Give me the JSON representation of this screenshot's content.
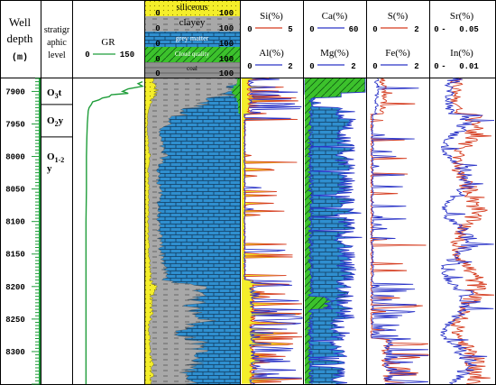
{
  "chart_data": {
    "type": "well-log",
    "depth_axis": {
      "title_line1": "Well",
      "title_line2": "depth",
      "unit": "(m)",
      "range": [
        7880,
        8350
      ],
      "ticks": [
        7900,
        7950,
        8000,
        8050,
        8100,
        8150,
        8200,
        8250,
        8300
      ]
    },
    "strat": {
      "header_lines": [
        "stratigr",
        "aphic",
        "level"
      ],
      "units": [
        {
          "label": "O3t",
          "main": "O",
          "sub": "3",
          "suffix": "t",
          "top": 7885,
          "bottom": 7920
        },
        {
          "label": "O2y",
          "main": "O",
          "sub": "2",
          "suffix": "y",
          "top": 7920,
          "bottom": 7970
        },
        {
          "label": "O1-2y",
          "main": "O",
          "sub": "1-2",
          "suffix": "y",
          "top": 7970,
          "bottom": 8350
        }
      ]
    },
    "gr": {
      "name": "GR",
      "range_min": "0",
      "range_max": "150",
      "min": 0,
      "max": 150,
      "color": "#1f9d3a",
      "points": [
        [
          7885,
          150
        ],
        [
          7888,
          140
        ],
        [
          7892,
          150
        ],
        [
          7896,
          118
        ],
        [
          7900,
          105
        ],
        [
          7903,
          118
        ],
        [
          7905,
          80
        ],
        [
          7908,
          75
        ],
        [
          7910,
          60
        ],
        [
          7913,
          52
        ],
        [
          7916,
          38
        ],
        [
          7920,
          35
        ],
        [
          7925,
          30
        ],
        [
          7930,
          28
        ],
        [
          7940,
          27
        ],
        [
          7950,
          26
        ],
        [
          7970,
          25
        ],
        [
          8000,
          24
        ],
        [
          8050,
          24
        ],
        [
          8100,
          23
        ],
        [
          8150,
          23
        ],
        [
          8200,
          23
        ],
        [
          8250,
          23
        ],
        [
          8300,
          23
        ],
        [
          8350,
          23
        ]
      ]
    },
    "lithology": {
      "legend": [
        {
          "label": "siliceous",
          "min": "0",
          "max": "100",
          "color": "#f4ee2a"
        },
        {
          "label": "clayey",
          "min": "0",
          "max": "100",
          "color": "#a8a8a8"
        },
        {
          "label": "grey matter",
          "min": "0",
          "max": "100",
          "color": "#1e90d0"
        },
        {
          "label": "Cloud quality",
          "min": "0",
          "max": "100",
          "color": "#3cc22c"
        },
        {
          "label": "coal",
          "min": "0",
          "max": "100",
          "color": "#909090"
        }
      ],
      "siliceous_pct": [
        [
          7885,
          8
        ],
        [
          7900,
          12
        ],
        [
          7915,
          6
        ],
        [
          7930,
          3
        ],
        [
          7960,
          2
        ],
        [
          8000,
          5
        ],
        [
          8020,
          3
        ],
        [
          8050,
          4
        ],
        [
          8100,
          3
        ],
        [
          8150,
          4
        ],
        [
          8190,
          6
        ],
        [
          8200,
          10
        ],
        [
          8220,
          6
        ],
        [
          8240,
          8
        ],
        [
          8260,
          4
        ],
        [
          8290,
          5
        ],
        [
          8310,
          6
        ],
        [
          8330,
          8
        ],
        [
          8350,
          5
        ]
      ],
      "clayey_pct": [
        [
          7885,
          95
        ],
        [
          7900,
          80
        ],
        [
          7915,
          60
        ],
        [
          7930,
          40
        ],
        [
          7960,
          12
        ],
        [
          8000,
          15
        ],
        [
          8020,
          10
        ],
        [
          8050,
          12
        ],
        [
          8100,
          10
        ],
        [
          8150,
          14
        ],
        [
          8190,
          16
        ],
        [
          8200,
          45
        ],
        [
          8215,
          55
        ],
        [
          8230,
          40
        ],
        [
          8250,
          60
        ],
        [
          8270,
          30
        ],
        [
          8290,
          55
        ],
        [
          8310,
          45
        ],
        [
          8330,
          40
        ],
        [
          8350,
          40
        ]
      ],
      "grey_matter_pct": [
        [
          7885,
          0
        ],
        [
          7920,
          60
        ],
        [
          7960,
          88
        ],
        [
          8000,
          85
        ],
        [
          8050,
          88
        ],
        [
          8100,
          90
        ],
        [
          8150,
          86
        ],
        [
          8190,
          84
        ],
        [
          8200,
          55
        ],
        [
          8215,
          45
        ],
        [
          8230,
          60
        ],
        [
          8250,
          40
        ],
        [
          8270,
          70
        ],
        [
          8290,
          45
        ],
        [
          8310,
          55
        ],
        [
          8330,
          60
        ],
        [
          8350,
          60
        ]
      ],
      "cloud_quality_pct": [
        [
          7885,
          3
        ],
        [
          7900,
          8
        ],
        [
          7920,
          2
        ],
        [
          7950,
          1
        ],
        [
          8000,
          0
        ],
        [
          8350,
          0
        ]
      ]
    },
    "tracks": [
      {
        "group": "Si/Al",
        "series": [
          {
            "name": "Si(%)",
            "range_min": "0",
            "range_max": "5",
            "min": 0,
            "max": 5,
            "color": "#d53b1e",
            "fill": "#f4ee2a"
          },
          {
            "name": "Al(%)",
            "range_min": "0",
            "range_max": "2",
            "min": 0,
            "max": 2,
            "color": "#2b34c8",
            "fill": null
          }
        ]
      },
      {
        "group": "Ca/Mg",
        "series": [
          {
            "name": "Ca(%)",
            "range_min": "0",
            "range_max": "60",
            "min": 0,
            "max": 60,
            "color": "#2b34c8",
            "fill": "#2f8fcf"
          },
          {
            "name": "Mg(%)",
            "range_min": "0",
            "range_max": "2",
            "min": 0,
            "max": 2,
            "color": "#2b34c8",
            "fill": "#3cc22c"
          }
        ]
      },
      {
        "group": "S/Fe",
        "series": [
          {
            "name": "S(%)",
            "range_min": "0",
            "range_max": "2",
            "min": 0,
            "max": 2,
            "color": "#d53b1e",
            "fill": null
          },
          {
            "name": "Fe(%)",
            "range_min": "0",
            "range_max": "2",
            "min": 0,
            "max": 2,
            "color": "#2b34c8",
            "fill": null
          }
        ]
      },
      {
        "group": "Sr/In",
        "series": [
          {
            "name": "Sr(%)",
            "range_min": "0",
            "range_max": "0.05",
            "min": 0,
            "max": 0.05,
            "color": "#d53b1e",
            "fill": null
          },
          {
            "name": "In(%)",
            "range_min": "0",
            "range_max": "0.01",
            "min": 0,
            "max": 0.01,
            "color": "#2b34c8",
            "fill": null
          }
        ]
      }
    ]
  }
}
